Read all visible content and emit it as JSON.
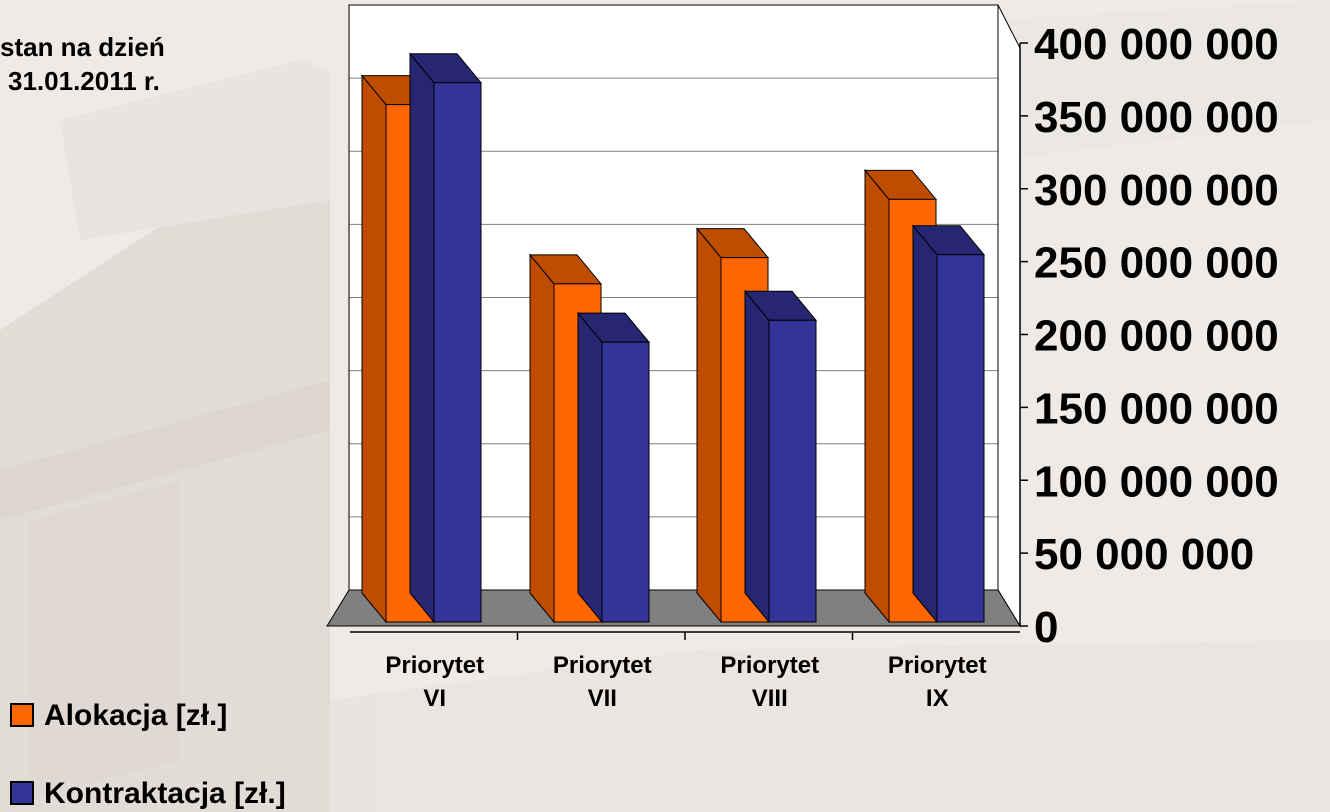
{
  "date_label": [
    "stan na dzień",
    "31.01.2011 r."
  ],
  "chart_data": {
    "type": "bar",
    "categories": [
      [
        "Priorytet",
        "VI"
      ],
      [
        "Priorytet",
        "VII"
      ],
      [
        "Priorytet",
        "VIII"
      ],
      [
        "Priorytet",
        "IX"
      ]
    ],
    "series": [
      {
        "name": "Alokacja [zł.]",
        "color": "#ff6600",
        "values": [
          355000000,
          232000000,
          250000000,
          290000000
        ]
      },
      {
        "name": "Kontraktacja [zł.]",
        "color": "#333399",
        "values": [
          370000000,
          192000000,
          207000000,
          252000000
        ]
      }
    ],
    "yticks": [
      "0",
      "50 000 000",
      "100 000 000",
      "150 000 000",
      "200 000 000",
      "250 000 000",
      "300 000 000",
      "350 000 000",
      "400 000 000"
    ],
    "ylim": [
      0,
      400000000
    ],
    "grid": true,
    "chart_style": "3d-clustered-column",
    "legend_position": "bottom-left",
    "colors": {
      "floor": "#808080",
      "gridline": "#808080",
      "axis": "#000000"
    }
  }
}
